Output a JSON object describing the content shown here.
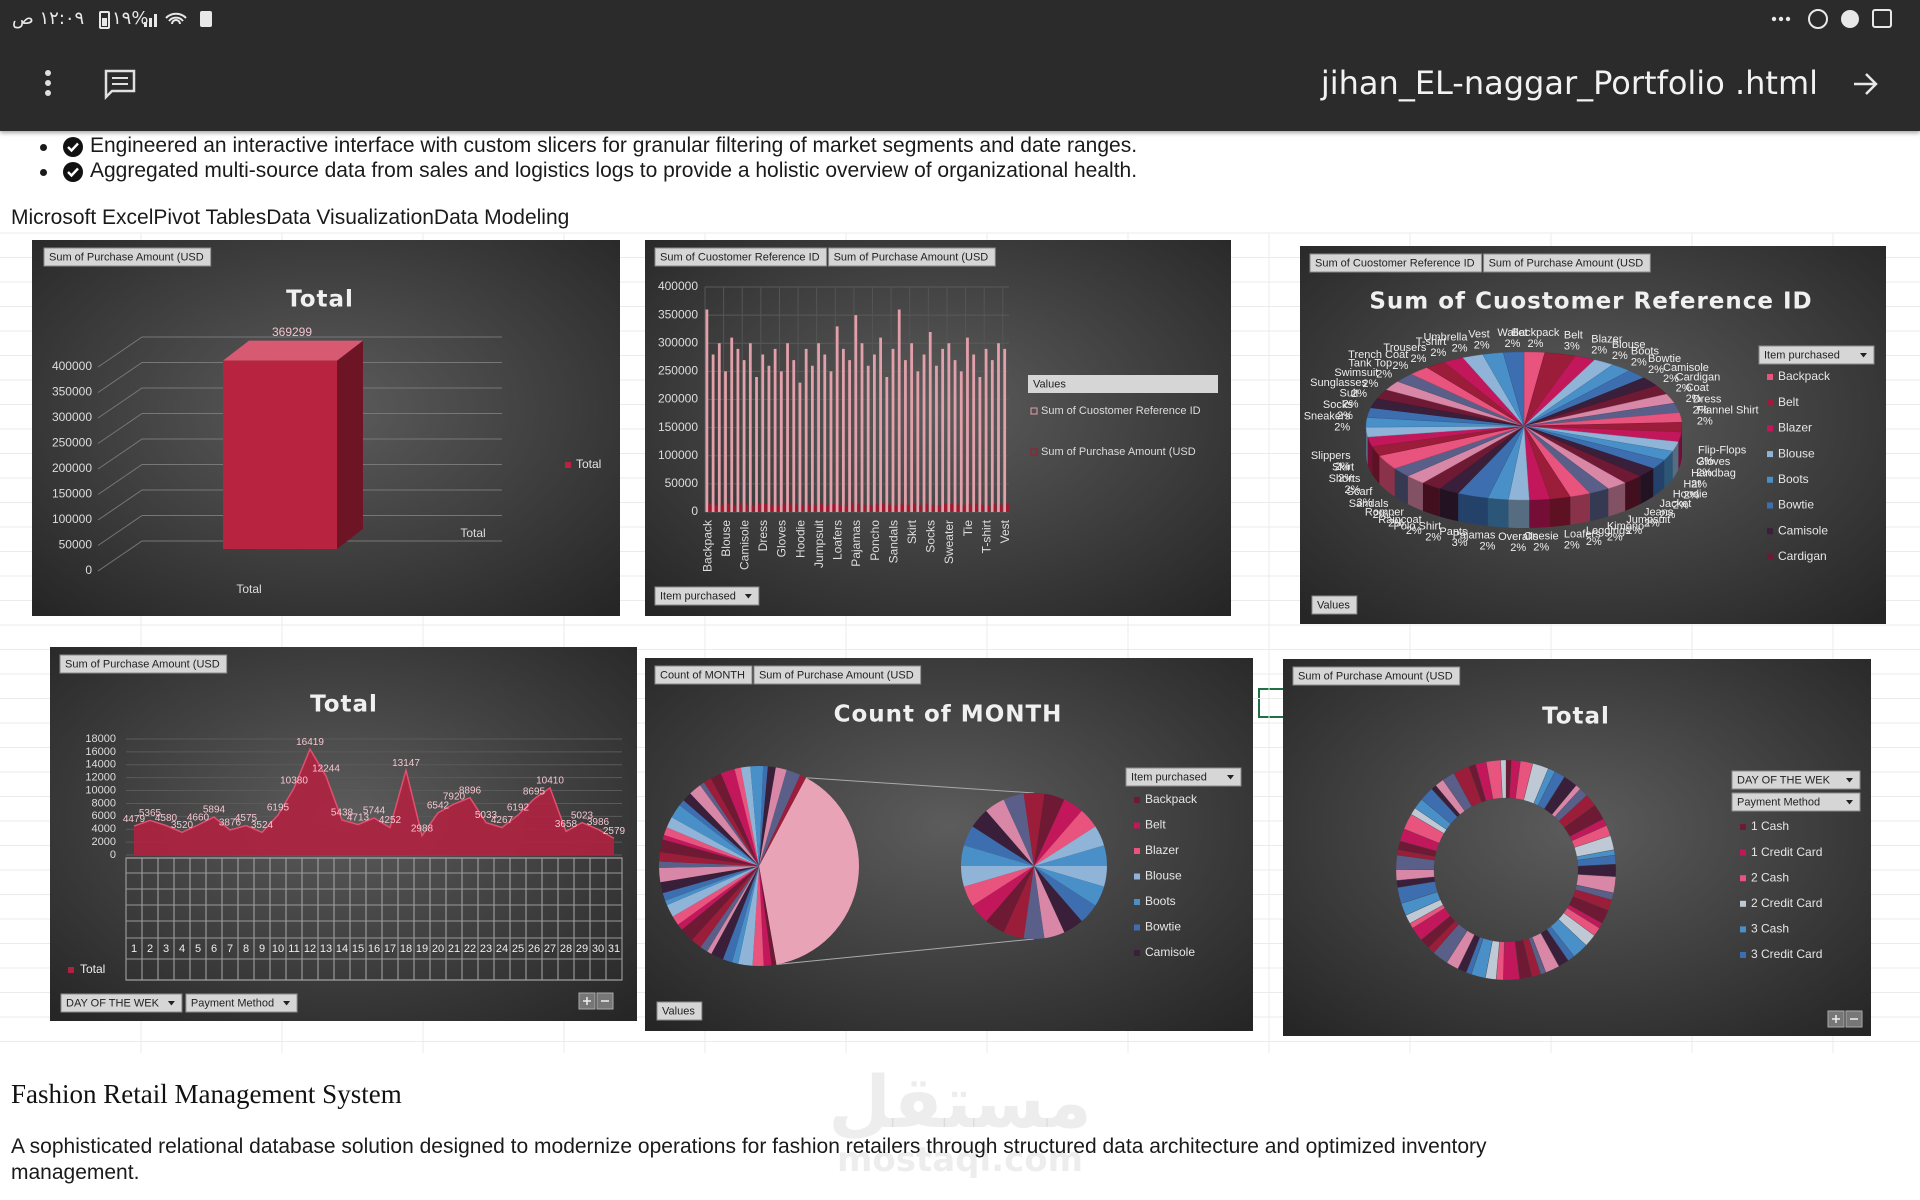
{
  "status_bar": {
    "time": "١٢:٠٩ ص",
    "battery": "%١٩"
  },
  "app_bar": {
    "title": "jihan_EL-naggar_Portfolio .html"
  },
  "bullets": [
    "Engineered an interactive interface with custom slicers for granular filtering of market segments and date ranges.",
    "Aggregated multi-source data from sales and logistics logs to provide a holistic overview of organizational health."
  ],
  "skills": "Microsoft ExcelPivot TablesData VisualizationData Modeling",
  "dashboard": [
    {
      "type": "bar3d",
      "buttons": [
        "Sum of Purchase Amount (USD"
      ],
      "title": "Total",
      "categories": [
        "Total"
      ],
      "series": [
        {
          "name": "Total",
          "color": "#b8243f",
          "values": [
            369299
          ]
        }
      ],
      "ylim": [
        0,
        400000
      ],
      "yticks": [
        0,
        50000,
        100000,
        150000,
        200000,
        250000,
        300000,
        350000,
        400000
      ],
      "depth_label": "Total"
    },
    {
      "type": "bar",
      "buttons": [
        "Sum of Cuostomer Reference ID",
        "Sum of Purchase Amount (USD"
      ],
      "categories": [
        "Backpack",
        null,
        null,
        "Blouse",
        null,
        null,
        "Camisole",
        null,
        null,
        "Dress",
        null,
        null,
        "Gloves",
        null,
        null,
        "Hoodie",
        null,
        null,
        "Jumpsuit",
        null,
        null,
        "Loafers",
        null,
        null,
        "Pajamas",
        null,
        null,
        "Poncho",
        null,
        null,
        "Sandals",
        null,
        null,
        "Skirt",
        null,
        null,
        "Socks",
        null,
        null,
        "Sweater",
        null,
        null,
        "Tie",
        null,
        null,
        "T-shirt",
        null,
        null,
        "Vest"
      ],
      "series": [
        {
          "name": "Sum of Cuostomer Reference ID",
          "color": "#e3a0aa",
          "values": [
            360000,
            280000,
            300000,
            250000,
            310000,
            290000,
            270000,
            300000,
            240000,
            280000,
            260000,
            290000,
            250000,
            300000,
            270000,
            230000,
            290000,
            260000,
            300000,
            280000,
            250000,
            330000,
            290000,
            270000,
            350000,
            300000,
            260000,
            280000,
            310000,
            240000,
            290000,
            360000,
            270000,
            300000,
            250000,
            280000,
            320000,
            260000,
            290000,
            300000,
            270000,
            250000,
            310000,
            280000,
            240000,
            290000,
            270000,
            300000,
            290000
          ]
        },
        {
          "name": "Sum of Purchase Amount (USD",
          "color": "#a3182f",
          "values": [
            14000,
            12000,
            13000,
            15000,
            12000,
            14000,
            13000,
            12000,
            15000,
            14000,
            13000,
            12000,
            14000,
            15000,
            13000,
            12000,
            14000,
            13000,
            15000,
            12000,
            14000,
            13000,
            12000,
            15000,
            14000,
            13000,
            12000,
            14000,
            15000,
            13000,
            12000,
            14000,
            13000,
            15000,
            12000,
            14000,
            13000,
            12000,
            15000,
            14000,
            13000,
            12000,
            14000,
            15000,
            13000,
            12000,
            14000,
            13000,
            15000
          ]
        }
      ],
      "ylim": [
        0,
        400000
      ],
      "yticks": [
        0,
        50000,
        100000,
        150000,
        200000,
        250000,
        300000,
        350000,
        400000
      ],
      "legend_title": "Values",
      "filter": "Item purchased"
    },
    {
      "type": "pie3d",
      "buttons": [
        "Sum of Cuostomer Reference ID",
        "Sum of Purchase Amount (USD"
      ],
      "title": "Sum of Cuostomer Reference ID",
      "filter": "Item purchased",
      "categories": [
        "Backpack",
        "Belt",
        "Blazer",
        "Blouse",
        "Boots",
        "Bowtie",
        "Camisole",
        "Cardigan",
        "Coat",
        "Dress",
        "Flannel Shirt",
        "Flip-Flops",
        "Gloves",
        "Handbag",
        "Hat",
        "Hoodie",
        "Jacket",
        "Jeans",
        "Jumpsuit",
        "Kimono",
        "Leggings",
        "Loafers",
        "Onesie",
        "Overalls",
        "Pajamas",
        "Pants",
        "Polo Shirt",
        "Raincoat",
        "Romper",
        "Sandals",
        "Scarf",
        "Shorts",
        "Skirt",
        "Slippers",
        "Sneakers",
        "Socks",
        "Suit",
        "Sunglasses",
        "Swimsuit",
        "Tank Top",
        "Trench Coat",
        "Trousers",
        "T-shirt",
        "Umbrella",
        "Vest",
        "Wallet"
      ],
      "values": [
        2,
        3,
        2,
        2,
        2,
        2,
        2,
        2,
        2,
        2,
        2,
        2,
        2,
        2,
        2,
        2,
        2,
        2,
        2,
        2,
        2,
        2,
        2,
        2,
        2,
        3,
        2,
        2,
        2,
        2,
        3,
        2,
        2,
        2,
        2,
        2,
        2,
        2,
        2,
        2,
        2,
        2,
        2,
        2,
        2,
        2
      ],
      "value_labels": [
        "2%",
        "3%",
        "2%",
        "2%",
        "2%",
        "2%",
        "2%",
        "2%",
        "2%",
        "2%",
        "2%",
        "2%",
        "2%",
        "2%",
        "2%",
        "2%",
        "2%",
        "2%",
        "2%",
        "2%",
        "2%",
        "2%",
        "2%",
        "2%",
        "2%",
        "3%",
        "2%",
        "2%",
        "2%",
        "2%",
        "3%",
        "2%",
        "2%",
        "2%",
        "2%",
        "2%",
        "2%",
        "2%",
        "2%",
        "2%",
        "2%",
        "2%",
        "2%",
        "2%",
        "2%",
        "2%"
      ],
      "colors": [
        "#e8547e",
        "#9b1d3a",
        "#c2185b",
        "#8fb4d8",
        "#4a90c8",
        "#3d6fb0",
        "#3a1f3a",
        "#6e1a35",
        "#d987a6",
        "#5a5f8a"
      ],
      "legend": [
        "Backpack",
        "Belt",
        "Blazer",
        "Blouse",
        "Boots",
        "Bowtie",
        "Camisole",
        "Cardigan"
      ],
      "footer": "Values"
    },
    {
      "type": "area",
      "buttons": [
        "Sum of Purchase Amount (USD"
      ],
      "title": "Total",
      "categories": [
        1,
        2,
        3,
        4,
        5,
        6,
        7,
        8,
        9,
        10,
        11,
        12,
        13,
        14,
        15,
        16,
        17,
        18,
        19,
        20,
        21,
        22,
        23,
        24,
        25,
        26,
        27,
        28,
        29,
        30,
        31
      ],
      "values": [
        4479,
        5365,
        4580,
        3520,
        4660,
        5894,
        3876,
        4575,
        3524,
        6195,
        10380,
        16419,
        12244,
        5438,
        4713,
        5744,
        4252,
        13147,
        2988,
        6542,
        7920,
        8896,
        5033,
        4267,
        6192,
        8695,
        10410,
        3658,
        5023,
        3986,
        2579
      ],
      "ylim": [
        0,
        18000
      ],
      "yticks": [
        0,
        2000,
        4000,
        6000,
        8000,
        10000,
        12000,
        14000,
        16000,
        18000
      ],
      "color": "#b0213f",
      "row_label": "Total",
      "filters": [
        "DAY OF THE WEK",
        "Payment Method"
      ]
    },
    {
      "type": "pie_of_pie",
      "buttons": [
        "Count of MONTH",
        "Sum of Purchase Amount (USD"
      ],
      "title": "Count of MONTH",
      "filter": "Item purchased",
      "legend": [
        "Backpack",
        "Belt",
        "Blazer",
        "Blouse",
        "Boots",
        "Bowtie",
        "Camisole"
      ],
      "colors": [
        "#6e1a35",
        "#c2185b",
        "#e8547e",
        "#8fb4d8",
        "#4a90c8",
        "#3d6fb0",
        "#3a1f3a",
        "#d987a6",
        "#5a5f8a",
        "#9b1d3a"
      ],
      "footer": "Values"
    },
    {
      "type": "donut",
      "buttons": [
        "Sum of Purchase Amount (USD"
      ],
      "title": "Total",
      "filters": [
        "DAY OF THE WEK",
        "Payment Method"
      ],
      "legend": [
        "1 Cash",
        "1 Credit Card",
        "2 Cash",
        "2 Credit Card",
        "3 Cash",
        "3 Credit Card"
      ],
      "colors": [
        "#6e1a35",
        "#c2185b",
        "#e8547e",
        "#bfc9d6",
        "#4a90c8",
        "#3d6fb0",
        "#3a1f3a",
        "#d987a6",
        "#5a5f8a",
        "#9b1d3a"
      ]
    }
  ],
  "project": {
    "title": "Fashion Retail Management System",
    "description": "A sophisticated relational database solution designed to modernize operations for fashion retailers through structured data architecture and optimized inventory management."
  },
  "watermark": {
    "arabic": "مستقل",
    "latin": "mostaql.com"
  }
}
